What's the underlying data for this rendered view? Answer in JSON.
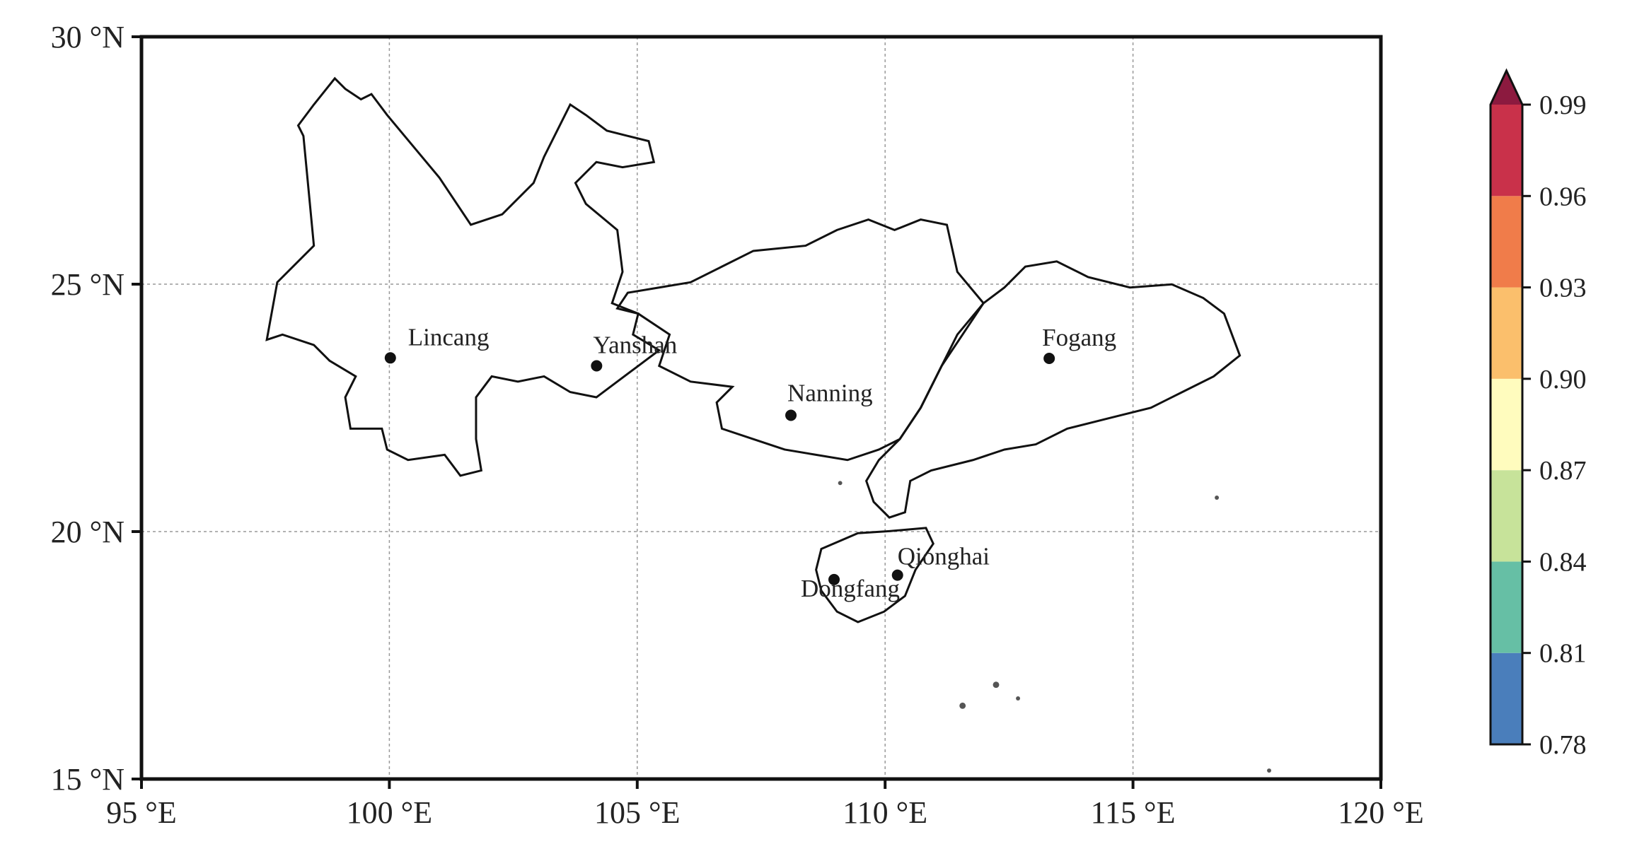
{
  "map": {
    "xlim": [
      95,
      120
    ],
    "ylim": [
      15,
      30
    ],
    "xticks": [
      {
        "value": 95,
        "label": "95 °E"
      },
      {
        "value": 100,
        "label": "100 °E"
      },
      {
        "value": 105,
        "label": "105 °E"
      },
      {
        "value": 110,
        "label": "110 °E"
      },
      {
        "value": 115,
        "label": "115 °E"
      },
      {
        "value": 120,
        "label": "120 °E"
      }
    ],
    "yticks": [
      {
        "value": 15,
        "label": "15 °N"
      },
      {
        "value": 20,
        "label": "20 °N"
      },
      {
        "value": 25,
        "label": "25 °N"
      },
      {
        "value": 30,
        "label": "30 °N"
      }
    ],
    "grid": true,
    "cities": [
      {
        "name": "Lincang",
        "lon": 100.02,
        "lat": 23.51
      },
      {
        "name": "Yanshan",
        "lon": 104.18,
        "lat": 23.35
      },
      {
        "name": "Nanning",
        "lon": 108.1,
        "lat": 22.35
      },
      {
        "name": "Fogang",
        "lon": 113.31,
        "lat": 23.5
      },
      {
        "name": "Qionghai",
        "lon": 110.25,
        "lat": 19.12
      },
      {
        "name": "Dongfang",
        "lon": 108.97,
        "lat": 19.03
      }
    ],
    "colorbar": {
      "ticks": [
        0.78,
        0.81,
        0.84,
        0.87,
        {
          "value": 0.9,
          "label": "0.90"
        },
        0.93,
        0.96,
        0.99
      ],
      "colors": [
        "#4a7ebb",
        "#66bfa5",
        "#c7e39a",
        "#fffcbe",
        "#fbbf6c",
        "#f07c4a",
        "#c9314a"
      ],
      "extend": "max",
      "extend_color": "#8c1a3f"
    }
  }
}
